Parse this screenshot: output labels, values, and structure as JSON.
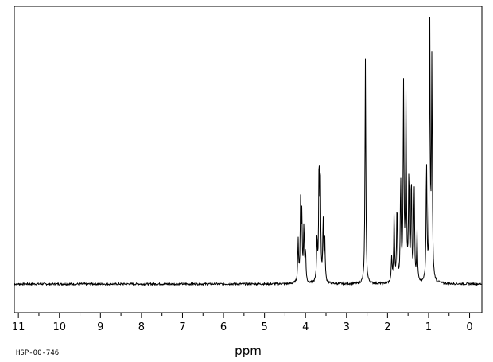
{
  "chart_data": {
    "type": "line",
    "title": "",
    "xlabel": "ppm",
    "ylabel": "",
    "xlim": [
      11.1,
      -0.3
    ],
    "x_reversed": true,
    "ylim": [
      0,
      1
    ],
    "grid": false,
    "ticks": [
      11,
      10,
      9,
      8,
      7,
      6,
      5,
      4,
      3,
      2,
      1,
      0
    ],
    "tick_labels": [
      "11",
      "10",
      "9",
      "8",
      "7",
      "6",
      "5",
      "4",
      "3",
      "2",
      "1",
      "0"
    ],
    "sample_code": "HSP-00-746",
    "baseline": 0.0,
    "peaks": [
      {
        "ppm": 4.18,
        "height": 0.17
      },
      {
        "ppm": 4.12,
        "height": 0.31
      },
      {
        "ppm": 4.09,
        "height": 0.25
      },
      {
        "ppm": 4.04,
        "height": 0.22
      },
      {
        "ppm": 4.0,
        "height": 0.12
      },
      {
        "ppm": 3.72,
        "height": 0.17
      },
      {
        "ppm": 3.67,
        "height": 0.45
      },
      {
        "ppm": 3.64,
        "height": 0.41
      },
      {
        "ppm": 3.57,
        "height": 0.24
      },
      {
        "ppm": 3.53,
        "height": 0.16
      },
      {
        "ppm": 2.54,
        "height": 0.89
      },
      {
        "ppm": 1.9,
        "height": 0.1
      },
      {
        "ppm": 1.84,
        "height": 0.27
      },
      {
        "ppm": 1.77,
        "height": 0.3
      },
      {
        "ppm": 1.68,
        "height": 0.4
      },
      {
        "ppm": 1.61,
        "height": 0.77
      },
      {
        "ppm": 1.55,
        "height": 0.73
      },
      {
        "ppm": 1.48,
        "height": 0.42
      },
      {
        "ppm": 1.42,
        "height": 0.4
      },
      {
        "ppm": 1.35,
        "height": 0.37
      },
      {
        "ppm": 1.28,
        "height": 0.2
      },
      {
        "ppm": 1.05,
        "height": 0.46
      },
      {
        "ppm": 0.97,
        "height": 1.0
      },
      {
        "ppm": 0.92,
        "height": 0.87
      }
    ]
  }
}
